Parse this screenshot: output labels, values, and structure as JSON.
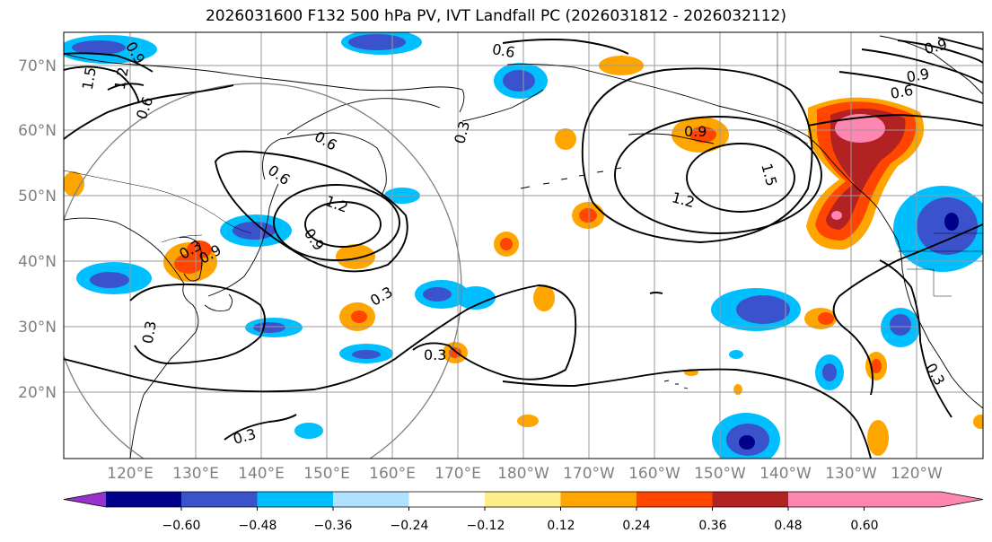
{
  "title": "2026031600 F132 500 hPa PV, IVT Landfall PC (2026031812 - 2026032112)",
  "lat_labels": [
    "70°N",
    "60°N",
    "50°N",
    "40°N",
    "30°N",
    "20°N"
  ],
  "lon_labels": [
    "120°E",
    "130°E",
    "140°E",
    "150°E",
    "160°E",
    "170°E",
    "180°W",
    "170°W",
    "160°W",
    "150°W",
    "140°W",
    "130°W",
    "120°W"
  ],
  "colorbar": {
    "ticks": [
      "−0.60",
      "−0.48",
      "−0.36",
      "−0.24",
      "−0.12",
      "0.12",
      "0.24",
      "0.36",
      "0.48",
      "0.60"
    ],
    "colors": [
      "#9932CC",
      "#00008B",
      "#3A52CC",
      "#00BFFF",
      "#B0E2FF",
      "#FFFFFF",
      "#FFEC8B",
      "#FFA500",
      "#FF4500",
      "#B22222",
      "#FF86B0"
    ]
  },
  "contour_labels": [
    "0.6",
    "0.9",
    "1.2",
    "1.5",
    "0.6",
    "0.6",
    "0.9",
    "1.2",
    "0.9",
    "0.3",
    "0.3",
    "0.3",
    "0.3",
    "0.3",
    "0.3",
    "0.6",
    "0.9",
    "1.2",
    "1.5",
    "0.9",
    "0.6",
    "0.9",
    "0.3"
  ]
}
